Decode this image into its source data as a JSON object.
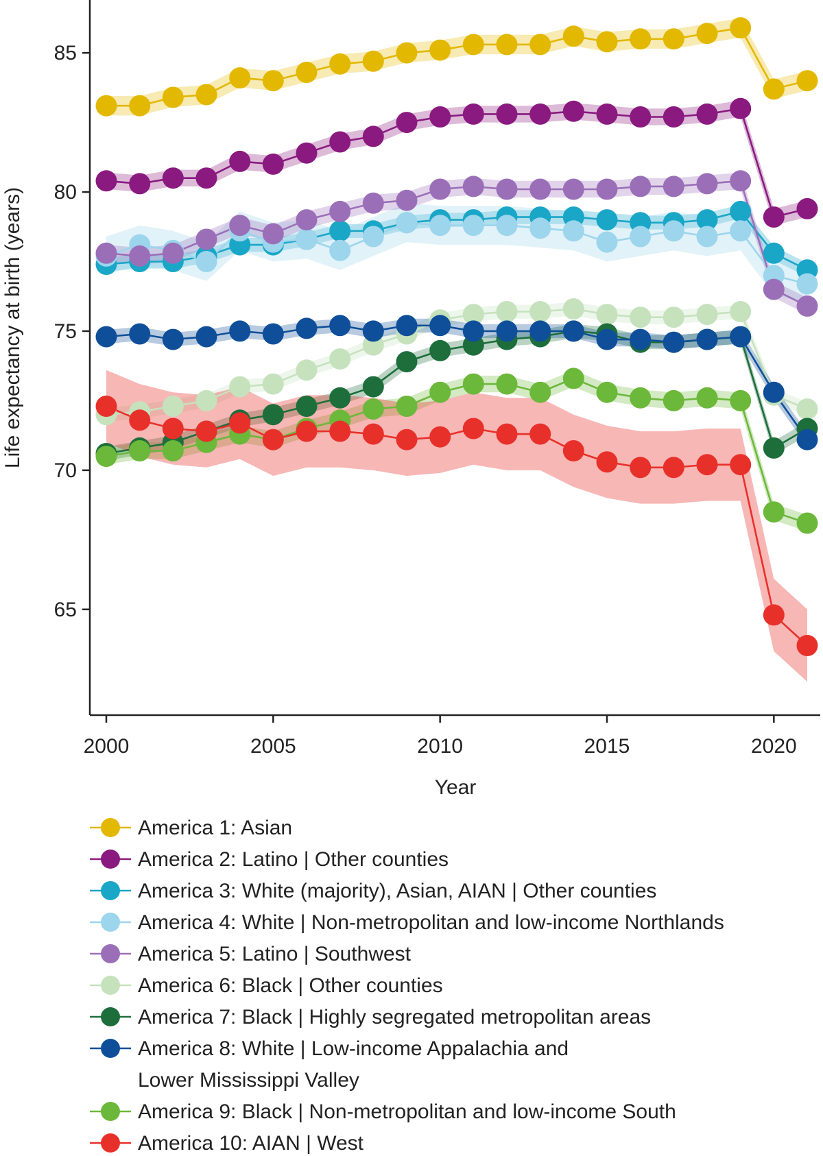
{
  "chart_data": {
    "type": "line",
    "title": "",
    "xlabel": "Year",
    "ylabel": "Life expectancy at birth (years)",
    "xlim": [
      1999.5,
      2021.5
    ],
    "ylim": [
      61.2,
      86.9
    ],
    "xticks": [
      2000,
      2005,
      2010,
      2015,
      2020
    ],
    "yticks": [
      65,
      70,
      75,
      80,
      85
    ],
    "grid": false,
    "legend_position": "bottom",
    "x": [
      2000,
      2001,
      2002,
      2003,
      2004,
      2005,
      2006,
      2007,
      2008,
      2009,
      2010,
      2011,
      2012,
      2013,
      2014,
      2015,
      2016,
      2017,
      2018,
      2019,
      2020,
      2021
    ],
    "series": [
      {
        "name": "America 1: Asian",
        "color": "#e3b800",
        "values": [
          83.1,
          83.1,
          83.4,
          83.5,
          84.1,
          84.0,
          84.3,
          84.6,
          84.7,
          85.0,
          85.1,
          85.3,
          85.3,
          85.3,
          85.6,
          85.4,
          85.5,
          85.5,
          85.7,
          85.9,
          83.7,
          84.0
        ],
        "band": 0.35
      },
      {
        "name": "America 2: Latino | Other counties",
        "color": "#8a1a7f",
        "values": [
          80.4,
          80.3,
          80.5,
          80.5,
          81.1,
          81.0,
          81.4,
          81.8,
          82.0,
          82.5,
          82.7,
          82.8,
          82.8,
          82.8,
          82.9,
          82.8,
          82.7,
          82.7,
          82.8,
          83.0,
          79.1,
          79.4
        ],
        "band": 0.3
      },
      {
        "name": "America 3: White (majority), Asian, AIAN | Other counties",
        "color": "#1aa6c7",
        "values": [
          77.4,
          77.5,
          77.5,
          77.7,
          78.1,
          78.1,
          78.3,
          78.6,
          78.6,
          78.9,
          79.0,
          79.0,
          79.1,
          79.1,
          79.1,
          79.0,
          78.9,
          78.9,
          79.0,
          79.3,
          77.8,
          77.2
        ],
        "band": 0.25
      },
      {
        "name": "America 4: White | Non-metropolitan and low-income Northlands",
        "color": "#9dd5ec",
        "values": [
          77.7,
          78.1,
          77.9,
          77.5,
          78.6,
          78.2,
          78.3,
          77.9,
          78.4,
          78.9,
          78.8,
          78.8,
          78.8,
          78.7,
          78.6,
          78.2,
          78.4,
          78.6,
          78.4,
          78.6,
          77.0,
          76.7
        ],
        "band": 0.7
      },
      {
        "name": "America 5: Latino | Southwest",
        "color": "#9b6fb8",
        "values": [
          77.8,
          77.7,
          77.8,
          78.3,
          78.8,
          78.5,
          79.0,
          79.3,
          79.6,
          79.7,
          80.1,
          80.2,
          80.1,
          80.1,
          80.1,
          80.1,
          80.2,
          80.2,
          80.3,
          80.4,
          76.5,
          75.9
        ],
        "band": 0.3
      },
      {
        "name": "America 6: Black | Other counties",
        "color": "#c5e2bd",
        "values": [
          72.0,
          72.1,
          72.3,
          72.5,
          73.0,
          73.1,
          73.6,
          74.0,
          74.5,
          74.9,
          75.4,
          75.6,
          75.7,
          75.7,
          75.8,
          75.6,
          75.5,
          75.5,
          75.6,
          75.7,
          72.7,
          72.2
        ],
        "band": 0.25
      },
      {
        "name": "America 7: Black | Highly segregated metropolitan areas",
        "color": "#1d6e3b",
        "values": [
          70.6,
          70.8,
          71.0,
          71.4,
          71.8,
          72.0,
          72.3,
          72.6,
          73.0,
          73.9,
          74.3,
          74.5,
          74.7,
          74.8,
          75.0,
          74.9,
          74.6,
          74.6,
          74.7,
          74.8,
          70.8,
          71.5
        ],
        "band": 0.25
      },
      {
        "name": "America 8: White | Low-income Appalachia and Lower Mississippi Valley",
        "color": "#0f4f99",
        "values": [
          74.8,
          74.9,
          74.7,
          74.8,
          75.0,
          74.9,
          75.1,
          75.2,
          75.0,
          75.2,
          75.2,
          75.0,
          75.0,
          75.0,
          75.0,
          74.7,
          74.7,
          74.6,
          74.7,
          74.8,
          72.8,
          71.1
        ],
        "band": 0.25
      },
      {
        "name": "America 9: Black | Non-metropolitan and low-income South",
        "color": "#6cb83a",
        "values": [
          70.5,
          70.7,
          70.7,
          71.0,
          71.3,
          71.1,
          71.5,
          71.8,
          72.2,
          72.3,
          72.8,
          73.1,
          73.1,
          72.8,
          73.3,
          72.8,
          72.6,
          72.5,
          72.6,
          72.5,
          68.5,
          68.1
        ],
        "band": 0.3
      },
      {
        "name": "America 10: AIAN | West",
        "color": "#e8302a",
        "values": [
          72.3,
          71.8,
          71.5,
          71.4,
          71.7,
          71.1,
          71.4,
          71.4,
          71.3,
          71.1,
          71.2,
          71.5,
          71.3,
          71.3,
          70.7,
          70.3,
          70.1,
          70.1,
          70.2,
          70.2,
          64.8,
          63.7
        ],
        "band": 1.3
      }
    ]
  },
  "legend_lines": {
    "s8_line2": "Lower Mississippi Valley"
  }
}
